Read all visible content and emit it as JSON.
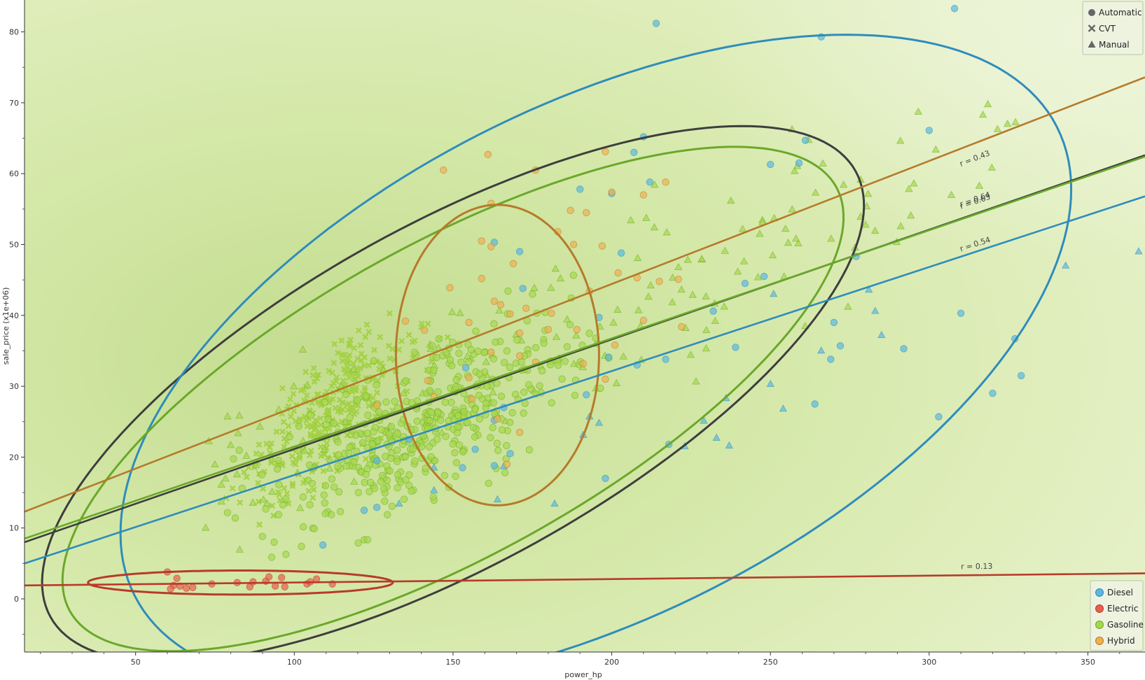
{
  "chart_data": {
    "type": "scatter",
    "title": "",
    "xlabel": "power_hp",
    "ylabel": "sale_price (x1e+06)",
    "xlim": [
      15,
      368
    ],
    "ylim": [
      -7.5,
      84.5
    ],
    "xticks": [
      50,
      100,
      150,
      200,
      250,
      300,
      350
    ],
    "yticks": [
      0,
      10,
      20,
      30,
      40,
      50,
      60,
      70,
      80
    ],
    "grid": false,
    "background": "density gradient (green)",
    "shape_legend": {
      "placement": "top-right",
      "entries": [
        {
          "label": "Automatic",
          "shape": "circle"
        },
        {
          "label": "CVT",
          "shape": "cross"
        },
        {
          "label": "Manual",
          "shape": "triangle"
        }
      ]
    },
    "color_legend": {
      "placement": "bottom-right",
      "entries": [
        {
          "label": "Diesel",
          "color": "#5bb8e0"
        },
        {
          "label": "Electric",
          "color": "#e8604c"
        },
        {
          "label": "Gasoline",
          "color": "#a6d84a"
        },
        {
          "label": "Hybrid",
          "color": "#f0b050"
        }
      ]
    },
    "series": [
      {
        "name": "Diesel",
        "color": "#2f8cbc",
        "marker_color": "#5bb8e0",
        "regression": {
          "x": [
            15,
            368
          ],
          "y": [
            5.0,
            56.8
          ],
          "label": "r = 0.54",
          "label_at": [
            310,
            49
          ]
        },
        "ellipse": {
          "cx": 195,
          "cy": 33.5,
          "rx": 163,
          "ry": 36,
          "angle": 27
        },
        "points": [
          {
            "x": 214,
            "y": 81.2,
            "m": "circle"
          },
          {
            "x": 266,
            "y": 79.3,
            "m": "circle"
          },
          {
            "x": 308,
            "y": 83.3,
            "m": "circle"
          },
          {
            "x": 300,
            "y": 66.1,
            "m": "circle"
          },
          {
            "x": 261,
            "y": 64.7,
            "m": "circle"
          },
          {
            "x": 259,
            "y": 61.5,
            "m": "circle"
          },
          {
            "x": 250,
            "y": 61.3,
            "m": "circle"
          },
          {
            "x": 210,
            "y": 65.2,
            "m": "circle"
          },
          {
            "x": 207,
            "y": 63.0,
            "m": "circle"
          },
          {
            "x": 212,
            "y": 58.8,
            "m": "circle"
          },
          {
            "x": 190,
            "y": 57.8,
            "m": "circle"
          },
          {
            "x": 200,
            "y": 57.2,
            "m": "circle"
          },
          {
            "x": 163,
            "y": 50.3,
            "m": "circle"
          },
          {
            "x": 171,
            "y": 49.0,
            "m": "circle"
          },
          {
            "x": 203,
            "y": 48.8,
            "m": "circle"
          },
          {
            "x": 277,
            "y": 48.3,
            "m": "circle"
          },
          {
            "x": 248,
            "y": 45.5,
            "m": "circle"
          },
          {
            "x": 242,
            "y": 44.5,
            "m": "circle"
          },
          {
            "x": 172,
            "y": 43.8,
            "m": "circle"
          },
          {
            "x": 232,
            "y": 40.6,
            "m": "circle"
          },
          {
            "x": 196,
            "y": 39.7,
            "m": "circle"
          },
          {
            "x": 310,
            "y": 40.3,
            "m": "circle"
          },
          {
            "x": 270,
            "y": 39.0,
            "m": "circle"
          },
          {
            "x": 272,
            "y": 35.7,
            "m": "circle"
          },
          {
            "x": 239,
            "y": 35.5,
            "m": "circle"
          },
          {
            "x": 199,
            "y": 34.1,
            "m": "circle"
          },
          {
            "x": 217,
            "y": 33.8,
            "m": "circle"
          },
          {
            "x": 269,
            "y": 33.8,
            "m": "circle"
          },
          {
            "x": 208,
            "y": 33.0,
            "m": "circle"
          },
          {
            "x": 154,
            "y": 32.6,
            "m": "circle"
          },
          {
            "x": 292,
            "y": 35.3,
            "m": "circle"
          },
          {
            "x": 327,
            "y": 36.7,
            "m": "circle"
          },
          {
            "x": 329,
            "y": 31.5,
            "m": "circle"
          },
          {
            "x": 320,
            "y": 29.0,
            "m": "circle"
          },
          {
            "x": 192,
            "y": 28.8,
            "m": "circle"
          },
          {
            "x": 264,
            "y": 27.5,
            "m": "circle"
          },
          {
            "x": 166,
            "y": 27.0,
            "m": "circle"
          },
          {
            "x": 163,
            "y": 25.2,
            "m": "circle"
          },
          {
            "x": 303,
            "y": 25.7,
            "m": "circle"
          },
          {
            "x": 136,
            "y": 22.5,
            "m": "circle"
          },
          {
            "x": 157,
            "y": 21.1,
            "m": "circle"
          },
          {
            "x": 218,
            "y": 21.8,
            "m": "circle"
          },
          {
            "x": 168,
            "y": 20.5,
            "m": "circle"
          },
          {
            "x": 126,
            "y": 19.5,
            "m": "circle"
          },
          {
            "x": 153,
            "y": 18.5,
            "m": "circle"
          },
          {
            "x": 163,
            "y": 18.8,
            "m": "circle"
          },
          {
            "x": 122,
            "y": 12.5,
            "m": "circle"
          },
          {
            "x": 126,
            "y": 12.9,
            "m": "circle"
          },
          {
            "x": 198,
            "y": 17.0,
            "m": "circle"
          },
          {
            "x": 109,
            "y": 7.6,
            "m": "circle"
          },
          {
            "x": 366,
            "y": 49.0,
            "m": "triangle"
          },
          {
            "x": 343,
            "y": 47.0,
            "m": "triangle"
          },
          {
            "x": 281,
            "y": 43.6,
            "m": "triangle"
          },
          {
            "x": 283,
            "y": 40.6,
            "m": "triangle"
          },
          {
            "x": 285,
            "y": 37.2,
            "m": "triangle"
          },
          {
            "x": 251,
            "y": 43.0,
            "m": "triangle"
          },
          {
            "x": 266,
            "y": 35.0,
            "m": "triangle"
          },
          {
            "x": 250,
            "y": 30.3,
            "m": "triangle"
          },
          {
            "x": 236,
            "y": 28.3,
            "m": "triangle"
          },
          {
            "x": 254,
            "y": 26.8,
            "m": "triangle"
          },
          {
            "x": 193,
            "y": 25.7,
            "m": "triangle"
          },
          {
            "x": 196,
            "y": 24.8,
            "m": "triangle"
          },
          {
            "x": 229,
            "y": 25.1,
            "m": "triangle"
          },
          {
            "x": 233,
            "y": 22.7,
            "m": "triangle"
          },
          {
            "x": 191,
            "y": 23.1,
            "m": "triangle"
          },
          {
            "x": 237,
            "y": 21.6,
            "m": "triangle"
          },
          {
            "x": 223,
            "y": 21.5,
            "m": "triangle"
          },
          {
            "x": 144,
            "y": 18.5,
            "m": "triangle"
          },
          {
            "x": 166,
            "y": 18.7,
            "m": "triangle"
          },
          {
            "x": 144,
            "y": 15.3,
            "m": "triangle"
          },
          {
            "x": 133,
            "y": 13.4,
            "m": "triangle"
          },
          {
            "x": 164,
            "y": 14.0,
            "m": "triangle"
          },
          {
            "x": 182,
            "y": 13.4,
            "m": "triangle"
          }
        ]
      },
      {
        "name": "Electric",
        "color": "#b83a2a",
        "marker_color": "#e8604c",
        "regression": {
          "x": [
            15,
            368
          ],
          "y": [
            1.9,
            3.6
          ],
          "label": "r = 0.13",
          "label_at": [
            310,
            4.2
          ]
        },
        "ellipse": {
          "cx": 83,
          "cy": 2.3,
          "rx": 48,
          "ry": 1.7,
          "angle": 0
        },
        "points": [
          {
            "x": 60,
            "y": 3.8,
            "m": "circle"
          },
          {
            "x": 62,
            "y": 1.9,
            "m": "circle"
          },
          {
            "x": 63,
            "y": 2.9,
            "m": "circle"
          },
          {
            "x": 61,
            "y": 1.4,
            "m": "circle"
          },
          {
            "x": 64,
            "y": 1.8,
            "m": "circle"
          },
          {
            "x": 66,
            "y": 1.5,
            "m": "circle"
          },
          {
            "x": 68,
            "y": 1.6,
            "m": "circle"
          },
          {
            "x": 74,
            "y": 2.1,
            "m": "circle"
          },
          {
            "x": 82,
            "y": 2.3,
            "m": "circle"
          },
          {
            "x": 86,
            "y": 1.7,
            "m": "circle"
          },
          {
            "x": 87,
            "y": 2.4,
            "m": "circle"
          },
          {
            "x": 91,
            "y": 2.5,
            "m": "circle"
          },
          {
            "x": 92,
            "y": 3.1,
            "m": "circle"
          },
          {
            "x": 94,
            "y": 1.8,
            "m": "circle"
          },
          {
            "x": 96,
            "y": 3.0,
            "m": "circle"
          },
          {
            "x": 97,
            "y": 1.7,
            "m": "circle"
          },
          {
            "x": 104,
            "y": 2.1,
            "m": "circle"
          },
          {
            "x": 105,
            "y": 2.4,
            "m": "circle"
          },
          {
            "x": 107,
            "y": 2.8,
            "m": "circle"
          },
          {
            "x": 112,
            "y": 2.1,
            "m": "circle"
          }
        ]
      },
      {
        "name": "Gasoline",
        "color": "#6aa82a",
        "marker_color": "#a6d84a",
        "regression": {
          "x": [
            15,
            368
          ],
          "y": [
            8.5,
            62.4
          ],
          "label": "r = 0.63",
          "label_at": [
            310,
            55
          ]
        },
        "ellipse": {
          "cx": 150,
          "cy": 28.2,
          "rx": 138,
          "ry": 22,
          "angle": 29
        },
        "points_note": "dense cloud (~700 markers) between x≈60 and x≈330"
      },
      {
        "name": "Hybrid",
        "color": "#b67a2a",
        "marker_color": "#f0b050",
        "regression": {
          "x": [
            15,
            368
          ],
          "y": [
            12.3,
            73.6
          ],
          "label": "r = 0.43",
          "label_at": [
            310,
            61
          ]
        },
        "ellipse": {
          "cx": 164,
          "cy": 34.4,
          "rx": 32,
          "ry": 21.2,
          "angle": 0
        },
        "points": [
          {
            "x": 147,
            "y": 60.5
          },
          {
            "x": 161,
            "y": 62.7
          },
          {
            "x": 176,
            "y": 60.5
          },
          {
            "x": 198,
            "y": 63.1
          },
          {
            "x": 217,
            "y": 58.8
          },
          {
            "x": 200,
            "y": 57.4
          },
          {
            "x": 162,
            "y": 55.8
          },
          {
            "x": 210,
            "y": 57.0
          },
          {
            "x": 187,
            "y": 54.8
          },
          {
            "x": 159,
            "y": 50.5
          },
          {
            "x": 162,
            "y": 49.7
          },
          {
            "x": 183,
            "y": 51.8
          },
          {
            "x": 192,
            "y": 54.5
          },
          {
            "x": 197,
            "y": 49.8
          },
          {
            "x": 169,
            "y": 47.3
          },
          {
            "x": 188,
            "y": 50.0
          },
          {
            "x": 202,
            "y": 46.0
          },
          {
            "x": 208,
            "y": 45.3
          },
          {
            "x": 215,
            "y": 44.8
          },
          {
            "x": 221,
            "y": 45.1
          },
          {
            "x": 159,
            "y": 45.2
          },
          {
            "x": 149,
            "y": 43.9
          },
          {
            "x": 163,
            "y": 42.0
          },
          {
            "x": 173,
            "y": 41.0
          },
          {
            "x": 181,
            "y": 40.3
          },
          {
            "x": 193,
            "y": 43.4
          },
          {
            "x": 222,
            "y": 38.4
          },
          {
            "x": 141,
            "y": 37.9
          },
          {
            "x": 135,
            "y": 39.2
          },
          {
            "x": 165,
            "y": 41.5
          },
          {
            "x": 168,
            "y": 40.2
          },
          {
            "x": 155,
            "y": 39.0
          },
          {
            "x": 171,
            "y": 37.5
          },
          {
            "x": 180,
            "y": 38.0
          },
          {
            "x": 189,
            "y": 38.0
          },
          {
            "x": 201,
            "y": 35.8
          },
          {
            "x": 210,
            "y": 39.3
          },
          {
            "x": 162,
            "y": 34.8
          },
          {
            "x": 171,
            "y": 34.3
          },
          {
            "x": 176,
            "y": 33.4
          },
          {
            "x": 191,
            "y": 33.2
          },
          {
            "x": 142,
            "y": 30.8
          },
          {
            "x": 155,
            "y": 31.2
          },
          {
            "x": 144,
            "y": 28.5
          },
          {
            "x": 126,
            "y": 27.3
          },
          {
            "x": 156,
            "y": 28.2
          },
          {
            "x": 164,
            "y": 25.4
          },
          {
            "x": 167,
            "y": 19.0
          },
          {
            "x": 171,
            "y": 23.5
          },
          {
            "x": 198,
            "y": 31.0
          }
        ]
      }
    ],
    "ungrouped_ellipse": {
      "color": "#3e3e3e",
      "cx": 150,
      "cy": 28.9,
      "rx": 145,
      "ry": 24,
      "angle": 29
    },
    "ungrouped_regression": {
      "x": [
        15,
        368
      ],
      "y": [
        8.0,
        62.6
      ],
      "label": "r = 0.64",
      "label_at": [
        310,
        55.3
      ]
    }
  }
}
